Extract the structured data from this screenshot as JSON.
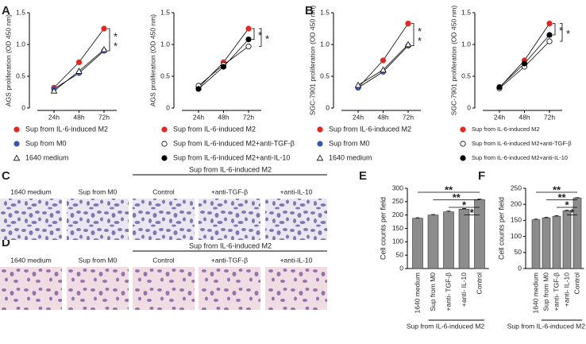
{
  "panel_labels": [
    "A",
    "B",
    "C",
    "D",
    "E",
    "F"
  ],
  "chart_data": [
    {
      "type": "line",
      "ylabel": "AGS proliferation (OD 450 nm)",
      "categories": [
        "24h",
        "48h",
        "72h"
      ],
      "ylim": [
        0,
        1.5
      ],
      "yticks": [
        0,
        0.5,
        {
          "value": 1,
          "label": "1.0"
        },
        1.5
      ],
      "series": [
        {
          "name": "Sup from IL-6-induced M2",
          "color": "#e8251f",
          "marker": "circle",
          "values": [
            0.32,
            0.72,
            1.25
          ]
        },
        {
          "name": "Sup from M0",
          "color": "#3a57b0",
          "marker": "circle",
          "values": [
            0.3,
            0.55,
            0.9
          ]
        },
        {
          "name": "1640 medium",
          "color": "#ffffff",
          "marker": "triangle",
          "values": [
            0.27,
            0.58,
            0.92
          ]
        }
      ],
      "significance": [
        {
          "pair": [
            0,
            1
          ],
          "labels": [
            "*",
            "*"
          ]
        }
      ]
    },
    {
      "type": "line",
      "ylabel": "AGS proliferation (OD 450 nm)",
      "categories": [
        "24h",
        "48h",
        "72h"
      ],
      "ylim": [
        0,
        1.5
      ],
      "yticks": [
        0,
        0.5,
        {
          "value": 1,
          "label": "1.0"
        },
        1.5
      ],
      "series": [
        {
          "name": "Sup from IL-6-induced M2",
          "color": "#e8251f",
          "marker": "circle",
          "values": [
            0.32,
            0.72,
            1.25
          ]
        },
        {
          "name": "Sup from IL-6-induced M2+anti-TGF-β",
          "color": "#ffffff",
          "marker": "circle",
          "values": [
            0.35,
            0.68,
            0.97
          ]
        },
        {
          "name": "Sup from IL-6-induced M2+anti-IL-10",
          "color": "#000000",
          "marker": "circle",
          "values": [
            0.3,
            0.65,
            1.08
          ]
        }
      ],
      "significance": [
        {
          "pair": [
            0,
            2
          ],
          "labels": [
            "*"
          ]
        },
        {
          "pair": [
            0,
            1
          ],
          "labels": [
            "*"
          ]
        }
      ]
    },
    {
      "type": "line",
      "ylabel": "SGC-7901 proliferation (OD 450 nm)",
      "categories": [
        "24h",
        "48h",
        "72h"
      ],
      "ylim": [
        0,
        1.5
      ],
      "yticks": [
        0,
        0.5,
        {
          "value": 1,
          "label": "1.0"
        },
        1.5
      ],
      "series": [
        {
          "name": "Sup from IL-6-induced M2",
          "color": "#e8251f",
          "marker": "circle",
          "values": [
            0.32,
            0.75,
            1.33
          ]
        },
        {
          "name": "Sup from M0",
          "color": "#3a57b0",
          "marker": "circle",
          "values": [
            0.32,
            0.57,
            0.98
          ]
        },
        {
          "name": "1640 medium",
          "color": "#ffffff",
          "marker": "triangle",
          "values": [
            0.36,
            0.6,
            1.0
          ]
        }
      ],
      "significance": [
        {
          "pair": [
            0,
            1
          ],
          "labels": [
            "*",
            "*"
          ]
        }
      ]
    },
    {
      "type": "line",
      "ylabel": "SGC-7901 proliferation (OD 450 nm)",
      "categories": [
        "24h",
        "48h",
        "72h"
      ],
      "ylim": [
        0,
        1.5
      ],
      "yticks": [
        0,
        0.5,
        {
          "value": 1,
          "label": "1.0"
        },
        1.5
      ],
      "series": [
        {
          "name": "Sup from IL-6-induced M2",
          "color": "#e8251f",
          "marker": "circle",
          "values": [
            0.32,
            0.75,
            1.33
          ]
        },
        {
          "name": "Sup from IL-6-induced M2+anti-TGF-β",
          "color": "#ffffff",
          "marker": "circle",
          "values": [
            0.31,
            0.65,
            1.05
          ]
        },
        {
          "name": "Sup from IL-6-induced M2+anti-IL-10",
          "color": "#000000",
          "marker": "circle",
          "values": [
            0.33,
            0.7,
            1.15
          ]
        }
      ],
      "significance": [
        {
          "pair": [
            0,
            2
          ],
          "labels": [
            "*"
          ]
        },
        {
          "pair": [
            0,
            1
          ],
          "labels": [
            "*"
          ]
        }
      ]
    },
    {
      "type": "bar",
      "ylabel": "Cell counts per field",
      "categories": [
        "1640 medium",
        "Sup from M0",
        "+anti- TGF-β",
        "+anti- IL-10",
        "Control"
      ],
      "values": [
        188,
        200,
        212,
        222,
        258
      ],
      "errors": [
        2,
        2,
        3,
        2,
        2
      ],
      "color": "#8c8c8c",
      "ylim": [
        0,
        300
      ],
      "yticks": [
        0,
        50,
        100,
        150,
        200,
        250,
        300
      ],
      "group_label": "Sup from IL-6-induced M2",
      "group": [
        1,
        4
      ],
      "significance": [
        {
          "pair": [
            0,
            4
          ],
          "label": "**"
        },
        {
          "pair": [
            1,
            4
          ],
          "label": "**"
        },
        {
          "pair": [
            2,
            4
          ],
          "label": "*"
        },
        {
          "pair": [
            3,
            4
          ],
          "label": "*"
        }
      ]
    },
    {
      "type": "bar",
      "ylabel": "Cell counts per field",
      "categories": [
        "1640 medium",
        "Sup from M0",
        "+anti- TGF-β",
        "+anti- IL-10",
        "Control"
      ],
      "values": [
        152,
        158,
        163,
        180,
        220
      ],
      "errors": [
        2,
        2,
        2,
        2,
        1
      ],
      "color": "#8c8c8c",
      "ylim": [
        0,
        250
      ],
      "yticks": [
        0,
        50,
        100,
        150,
        200,
        250
      ],
      "group_label": "Sup from IL-6-induced M2",
      "group": [
        1,
        4
      ],
      "significance": [
        {
          "pair": [
            0,
            4
          ],
          "label": "**"
        },
        {
          "pair": [
            1,
            4
          ],
          "label": "**"
        },
        {
          "pair": [
            2,
            4
          ],
          "label": "*"
        },
        {
          "pair": [
            3,
            4
          ],
          "label": "*"
        }
      ]
    }
  ],
  "image_rows": [
    {
      "group_label": "Sup from IL-6-induced M2",
      "labels": [
        "1640 medium",
        "Sup from M0",
        "Control",
        "+anti-TGF-β",
        "+anti-IL-10"
      ]
    },
    {
      "group_label": "Sup from IL-6-induced M2",
      "labels": [
        "1640 medium",
        "Sup from M0",
        "Control",
        "+anti-TGF-β",
        "+anti-IL-10"
      ]
    }
  ]
}
